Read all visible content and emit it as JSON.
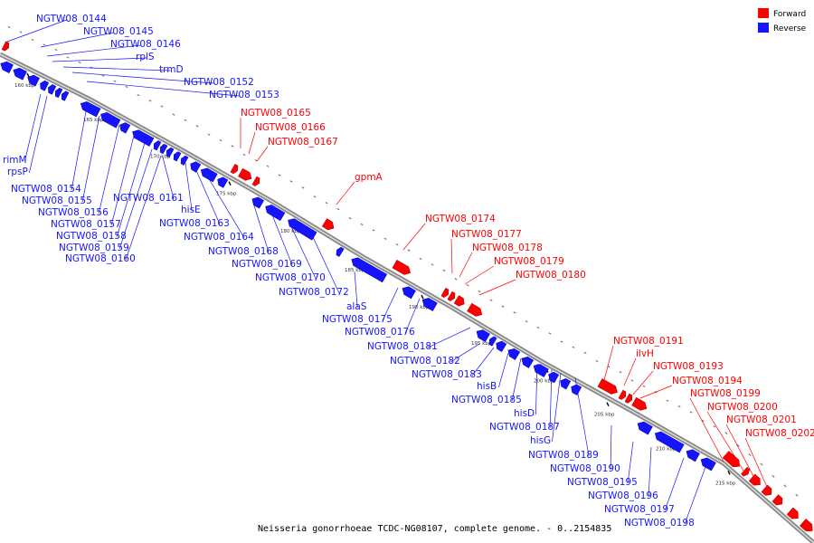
{
  "legend": {
    "forward_label": "Forward",
    "reverse_label": "Reverse",
    "forward_color": "#ff0000",
    "reverse_color": "#1414ff"
  },
  "caption": "Neisseria gonorrhoeae TCDC-NG08107, complete genome. - 0..2154835",
  "ticks": [
    "160 kbp",
    "165 kbp",
    "170 kbp",
    "175 kbp",
    "180 kbp",
    "185 kbp",
    "190 kbp",
    "195 kbp",
    "200 kbp",
    "205 kbp",
    "210 kbp",
    "215 kbp"
  ],
  "reverse_labels": [
    "NGTW08_0144",
    "NGTW08_0145",
    "NGTW08_0146",
    "rplS",
    "trmD",
    "NGTW08_0152",
    "NGTW08_0153",
    "rimM",
    "rpsP",
    "NGTW08_0154",
    "NGTW08_0155",
    "NGTW08_0156",
    "NGTW08_0157",
    "NGTW08_0158",
    "NGTW08_0159",
    "NGTW08_0160",
    "NGTW08_0161",
    "hisE",
    "NGTW08_0163",
    "NGTW08_0164",
    "NGTW08_0168",
    "NGTW08_0169",
    "NGTW08_0170",
    "NGTW08_0172",
    "alaS",
    "NGTW08_0175",
    "NGTW08_0176",
    "NGTW08_0181",
    "NGTW08_0182",
    "NGTW08_0183",
    "hisB",
    "NGTW08_0185",
    "hisD",
    "NGTW08_0187",
    "hisG",
    "NGTW08_0189",
    "NGTW08_0190",
    "NGTW08_0195",
    "NGTW08_0196",
    "NGTW08_0197",
    "NGTW08_0198"
  ],
  "forward_labels": [
    "NGTW08_0165",
    "NGTW08_0166",
    "NGTW08_0167",
    "gpmA",
    "NGTW08_0174",
    "NGTW08_0177",
    "NGTW08_0178",
    "NGTW08_0179",
    "NGTW08_0180",
    "NGTW08_0191",
    "ilvH",
    "NGTW08_0193",
    "NGTW08_0194",
    "NGTW08_0199",
    "NGTW08_0200",
    "NGTW08_0201",
    "NGTW08_0202"
  ]
}
